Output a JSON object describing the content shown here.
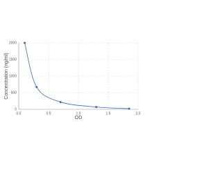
{
  "chart_data": {
    "type": "scatter",
    "x_label": "OD",
    "y_label": "Concentration (ng/ml)",
    "x": [
      0.1,
      0.3,
      0.7,
      1.3,
      1.85
    ],
    "series": [
      {
        "color": "#3a6ab0",
        "values": [
          2000,
          670,
          220,
          70,
          20
        ]
      }
    ],
    "xlim": [
      0,
      2
    ],
    "ylim": [
      0,
      2000
    ],
    "xticks": [
      {
        "value": 0,
        "label": "0.0"
      },
      {
        "value": 0.5,
        "label": "0.5"
      },
      {
        "value": 1,
        "label": "1.0"
      },
      {
        "value": 1.5,
        "label": "1.5"
      },
      {
        "value": 2,
        "label": "2.0"
      }
    ],
    "yticks": [
      0,
      500,
      1000,
      1500,
      2000
    ],
    "grid": true,
    "smooth_line": true
  }
}
